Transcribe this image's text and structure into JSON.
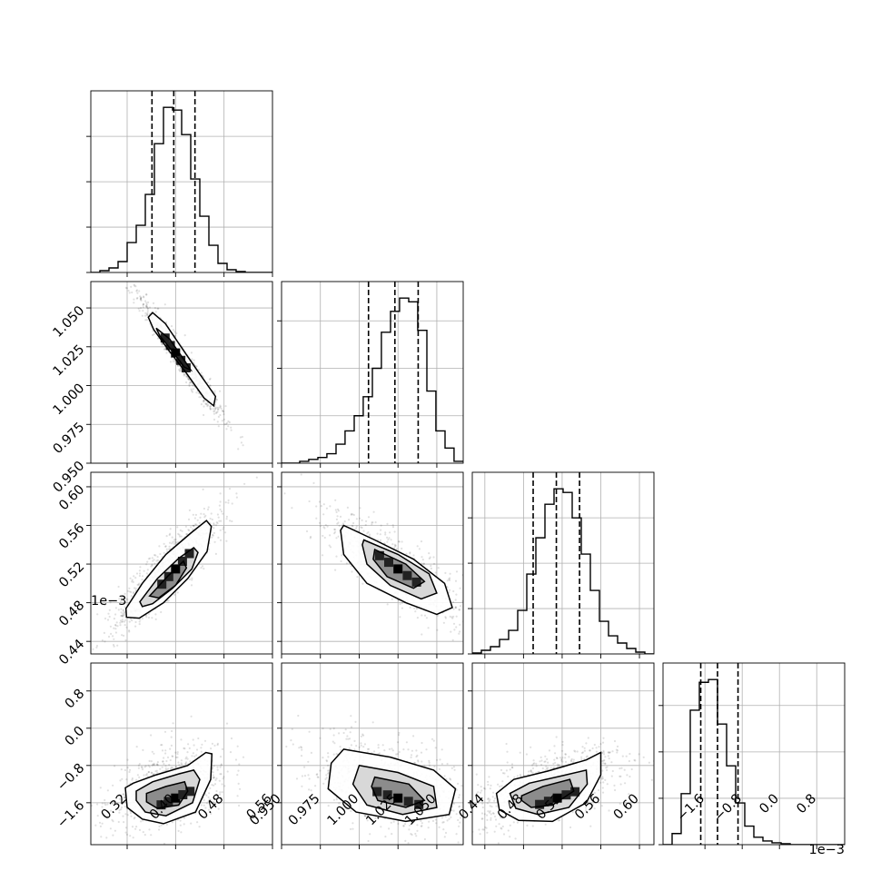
{
  "chart_data": {
    "type": "corner",
    "parameter_count": 4,
    "grid": true,
    "quantile_lines": "dashed",
    "scatter_color": "#000000",
    "histogram_color": "#000000",
    "axes": [
      {
        "index": 0,
        "range": [
          0.26,
          0.56
        ],
        "ticks": [
          0.32,
          0.4,
          0.48,
          0.56
        ],
        "tick_labels": [
          "0.32",
          "0.40",
          "0.48",
          "0.56"
        ],
        "offset_label": ""
      },
      {
        "index": 1,
        "range": [
          0.95,
          1.067
        ],
        "ticks": [
          0.95,
          0.975,
          1.0,
          1.025,
          1.05
        ],
        "tick_labels": [
          "0.950",
          "0.975",
          "1.000",
          "1.025",
          "1.050"
        ],
        "offset_label": ""
      },
      {
        "index": 2,
        "range": [
          0.427,
          0.615
        ],
        "ticks": [
          0.44,
          0.48,
          0.52,
          0.56,
          0.6
        ],
        "tick_labels": [
          "0.44",
          "0.48",
          "0.52",
          "0.56",
          "0.60"
        ],
        "offset_label": ""
      },
      {
        "index": 3,
        "range": [
          -2.5,
          1.4
        ],
        "ticks": [
          -1.6,
          -0.8,
          0.0,
          0.8
        ],
        "tick_labels": [
          "−1.6",
          "−0.8",
          "0.0",
          "0.8"
        ],
        "offset_label": "1e−3"
      }
    ],
    "quantiles": [
      [
        0.361,
        0.397,
        0.432
      ],
      [
        1.006,
        1.023,
        1.038
      ],
      [
        0.49,
        0.514,
        0.538
      ],
      [
        -1.69,
        -1.33,
        -0.89
      ]
    ],
    "histograms": [
      {
        "param": 0,
        "bin_edges": [
          0.26,
          0.275,
          0.29,
          0.305,
          0.32,
          0.335,
          0.35,
          0.365,
          0.38,
          0.395,
          0.41,
          0.425,
          0.44,
          0.455,
          0.47,
          0.485,
          0.5,
          0.515,
          0.53,
          0.545,
          0.56
        ],
        "counts": [
          0,
          2,
          5,
          12,
          33,
          52,
          86,
          142,
          182,
          179,
          152,
          103,
          62,
          30,
          10,
          3,
          1,
          0,
          0,
          0
        ]
      },
      {
        "param": 1,
        "bin_edges": [
          0.95,
          0.9558,
          0.9617,
          0.9675,
          0.9734,
          0.9792,
          0.9851,
          0.9909,
          0.9968,
          1.0026,
          1.0085,
          1.0143,
          1.0202,
          1.026,
          1.0319,
          1.0377,
          1.0436,
          1.0494,
          1.0553,
          1.0611,
          1.067
        ],
        "counts": [
          0,
          0,
          2,
          4,
          6,
          10,
          20,
          34,
          50,
          70,
          100,
          138,
          160,
          174,
          170,
          140,
          76,
          34,
          16,
          2
        ]
      },
      {
        "param": 2,
        "bin_edges": [
          0.427,
          0.4364,
          0.4458,
          0.4552,
          0.4646,
          0.474,
          0.4834,
          0.4928,
          0.5022,
          0.5116,
          0.521,
          0.5304,
          0.5398,
          0.5492,
          0.5586,
          0.568,
          0.5774,
          0.5868,
          0.5962,
          0.6056,
          0.615
        ],
        "counts": [
          1,
          4,
          8,
          16,
          26,
          48,
          88,
          128,
          165,
          182,
          178,
          150,
          110,
          70,
          36,
          20,
          12,
          6,
          2,
          0
        ]
      },
      {
        "param": 3,
        "bin_edges": [
          -2.5,
          -2.305,
          -2.11,
          -1.915,
          -1.72,
          -1.525,
          -1.33,
          -1.135,
          -0.94,
          -0.745,
          -0.55,
          -0.355,
          -0.16,
          0.035,
          0.23,
          0.425,
          0.62,
          0.815,
          1.01,
          1.205,
          1.4
        ],
        "counts": [
          0,
          12,
          55,
          145,
          175,
          178,
          130,
          85,
          45,
          20,
          8,
          4,
          2,
          1,
          0,
          0,
          0,
          0,
          0,
          0
        ]
      }
    ],
    "panels": [
      {
        "row": 1,
        "col": 0,
        "cluster_center": [
          0.4,
          1.021
        ],
        "contours": [
          [
            [
              0.362,
              1.047
            ],
            [
              0.383,
              1.04
            ],
            [
              0.409,
              1.025
            ],
            [
              0.437,
              1.009
            ],
            [
              0.466,
              0.993
            ],
            [
              0.463,
              0.987
            ],
            [
              0.447,
              0.992
            ],
            [
              0.418,
              1.008
            ],
            [
              0.39,
              1.022
            ],
            [
              0.364,
              1.036
            ],
            [
              0.355,
              1.044
            ],
            [
              0.362,
              1.047
            ]
          ],
          [
            [
              0.368,
              1.037
            ],
            [
              0.39,
              1.03
            ],
            [
              0.415,
              1.016
            ],
            [
              0.425,
              1.01
            ],
            [
              0.414,
              1.012
            ],
            [
              0.395,
              1.022
            ],
            [
              0.374,
              1.032
            ],
            [
              0.368,
              1.037
            ]
          ]
        ]
      },
      {
        "row": 2,
        "col": 0,
        "cluster_center": [
          0.4,
          0.515
        ],
        "contours": [
          [
            [
              0.318,
              0.474
            ],
            [
              0.345,
              0.5
            ],
            [
              0.384,
              0.53
            ],
            [
              0.425,
              0.552
            ],
            [
              0.451,
              0.565
            ],
            [
              0.459,
              0.559
            ],
            [
              0.452,
              0.533
            ],
            [
              0.42,
              0.505
            ],
            [
              0.38,
              0.48
            ],
            [
              0.34,
              0.464
            ],
            [
              0.319,
              0.465
            ],
            [
              0.318,
              0.474
            ]
          ],
          [
            [
              0.341,
              0.481
            ],
            [
              0.37,
              0.505
            ],
            [
              0.405,
              0.526
            ],
            [
              0.43,
              0.537
            ],
            [
              0.437,
              0.532
            ],
            [
              0.427,
              0.515
            ],
            [
              0.395,
              0.495
            ],
            [
              0.362,
              0.479
            ],
            [
              0.345,
              0.476
            ],
            [
              0.341,
              0.481
            ]
          ],
          [
            [
              0.357,
              0.487
            ],
            [
              0.388,
              0.508
            ],
            [
              0.413,
              0.523
            ],
            [
              0.418,
              0.516
            ],
            [
              0.4,
              0.498
            ],
            [
              0.372,
              0.485
            ],
            [
              0.357,
              0.487
            ]
          ]
        ]
      },
      {
        "row": 2,
        "col": 1,
        "cluster_center": [
          1.025,
          0.515
        ],
        "contours": [
          [
            [
              0.99,
              0.56
            ],
            [
              1.01,
              0.545
            ],
            [
              1.035,
              0.525
            ],
            [
              1.055,
              0.5
            ],
            [
              1.06,
              0.475
            ],
            [
              1.05,
              0.468
            ],
            [
              1.03,
              0.48
            ],
            [
              1.005,
              0.5
            ],
            [
              0.99,
              0.53
            ],
            [
              0.988,
              0.555
            ],
            [
              0.99,
              0.56
            ]
          ],
          [
            [
              1.003,
              0.545
            ],
            [
              1.025,
              0.53
            ],
            [
              1.045,
              0.51
            ],
            [
              1.05,
              0.49
            ],
            [
              1.04,
              0.484
            ],
            [
              1.02,
              0.498
            ],
            [
              1.005,
              0.52
            ],
            [
              1.002,
              0.54
            ],
            [
              1.003,
              0.545
            ]
          ],
          [
            [
              1.01,
              0.535
            ],
            [
              1.03,
              0.52
            ],
            [
              1.042,
              0.502
            ],
            [
              1.035,
              0.495
            ],
            [
              1.018,
              0.507
            ],
            [
              1.009,
              0.525
            ],
            [
              1.01,
              0.535
            ]
          ]
        ]
      },
      {
        "row": 3,
        "col": 0,
        "cluster_center": [
          0.4,
          -1.5
        ],
        "contours": [
          [
            [
              0.317,
              -1.28
            ],
            [
              0.33,
              -1.18
            ],
            [
              0.368,
              -1.0
            ],
            [
              0.42,
              -0.8
            ],
            [
              0.45,
              -0.52
            ],
            [
              0.46,
              -0.55
            ],
            [
              0.458,
              -1.1
            ],
            [
              0.433,
              -1.8
            ],
            [
              0.38,
              -2.05
            ],
            [
              0.345,
              -1.95
            ],
            [
              0.32,
              -1.7
            ],
            [
              0.317,
              -1.28
            ]
          ],
          [
            [
              0.335,
              -1.35
            ],
            [
              0.362,
              -1.15
            ],
            [
              0.405,
              -0.98
            ],
            [
              0.43,
              -0.9
            ],
            [
              0.44,
              -1.1
            ],
            [
              0.428,
              -1.6
            ],
            [
              0.384,
              -1.88
            ],
            [
              0.35,
              -1.8
            ],
            [
              0.335,
              -1.55
            ],
            [
              0.335,
              -1.35
            ]
          ],
          [
            [
              0.352,
              -1.4
            ],
            [
              0.384,
              -1.25
            ],
            [
              0.415,
              -1.15
            ],
            [
              0.42,
              -1.35
            ],
            [
              0.405,
              -1.65
            ],
            [
              0.37,
              -1.72
            ],
            [
              0.352,
              -1.58
            ],
            [
              0.352,
              -1.4
            ]
          ]
        ]
      },
      {
        "row": 3,
        "col": 1,
        "cluster_center": [
          1.025,
          -1.5
        ],
        "contours": [
          [
            [
              0.99,
              -0.45
            ],
            [
              1.02,
              -0.62
            ],
            [
              1.048,
              -0.9
            ],
            [
              1.062,
              -1.3
            ],
            [
              1.058,
              -1.85
            ],
            [
              1.03,
              -2.0
            ],
            [
              0.998,
              -1.8
            ],
            [
              0.98,
              -1.3
            ],
            [
              0.982,
              -0.75
            ],
            [
              0.99,
              -0.45
            ]
          ],
          [
            [
              1.0,
              -0.8
            ],
            [
              1.025,
              -0.95
            ],
            [
              1.048,
              -1.25
            ],
            [
              1.05,
              -1.7
            ],
            [
              1.028,
              -1.85
            ],
            [
              1.005,
              -1.65
            ],
            [
              0.996,
              -1.2
            ],
            [
              1.0,
              -0.8
            ]
          ],
          [
            [
              1.01,
              -1.05
            ],
            [
              1.032,
              -1.2
            ],
            [
              1.042,
              -1.55
            ],
            [
              1.03,
              -1.7
            ],
            [
              1.012,
              -1.55
            ],
            [
              1.008,
              -1.25
            ],
            [
              1.01,
              -1.05
            ]
          ]
        ]
      },
      {
        "row": 3,
        "col": 2,
        "cluster_center": [
          0.515,
          -1.5
        ],
        "contours": [
          [
            [
              0.452,
              -1.4
            ],
            [
              0.47,
              -1.1
            ],
            [
              0.505,
              -0.92
            ],
            [
              0.545,
              -0.68
            ],
            [
              0.56,
              -0.52
            ],
            [
              0.56,
              -1.0
            ],
            [
              0.545,
              -1.6
            ],
            [
              0.51,
              -2.0
            ],
            [
              0.475,
              -1.98
            ],
            [
              0.455,
              -1.75
            ],
            [
              0.452,
              -1.4
            ]
          ],
          [
            [
              0.466,
              -1.4
            ],
            [
              0.486,
              -1.18
            ],
            [
              0.52,
              -1.02
            ],
            [
              0.545,
              -0.9
            ],
            [
              0.546,
              -1.2
            ],
            [
              0.527,
              -1.7
            ],
            [
              0.495,
              -1.85
            ],
            [
              0.472,
              -1.72
            ],
            [
              0.466,
              -1.4
            ]
          ],
          [
            [
              0.478,
              -1.45
            ],
            [
              0.5,
              -1.25
            ],
            [
              0.528,
              -1.1
            ],
            [
              0.532,
              -1.35
            ],
            [
              0.51,
              -1.65
            ],
            [
              0.488,
              -1.7
            ],
            [
              0.478,
              -1.55
            ],
            [
              0.478,
              -1.45
            ]
          ]
        ]
      }
    ]
  }
}
